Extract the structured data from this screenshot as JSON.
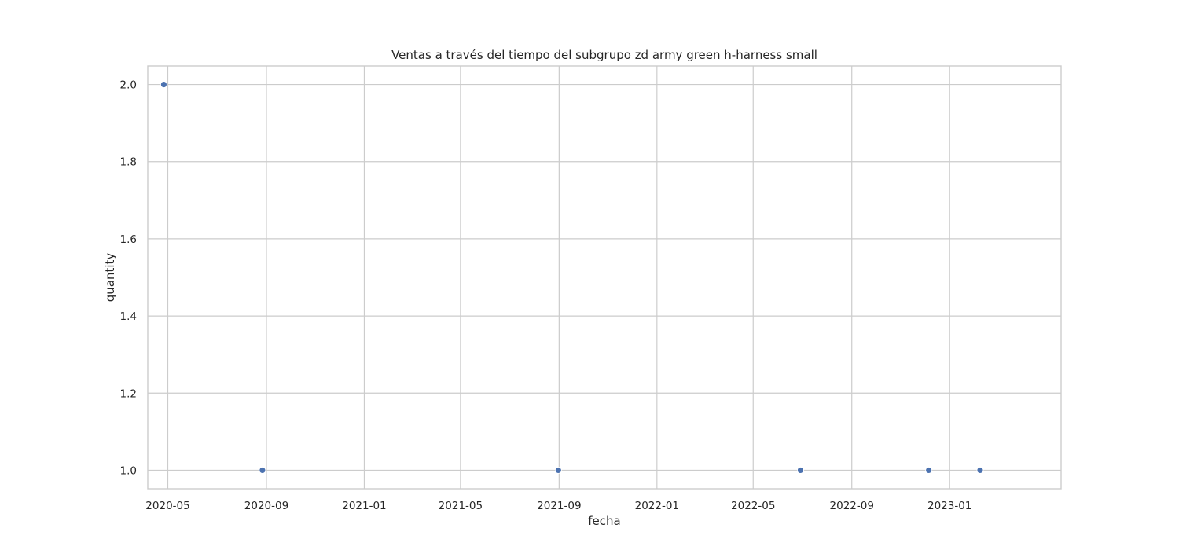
{
  "chart_data": {
    "type": "scatter",
    "title": "Ventas a través del tiempo del subgrupo zd army green h-harness small",
    "xlabel": "fecha",
    "ylabel": "quantity",
    "x_type": "date",
    "x": [
      "2020-04-26",
      "2020-08-27",
      "2021-08-31",
      "2022-06-29",
      "2022-12-06",
      "2023-02-08"
    ],
    "y": [
      2.0,
      1.0,
      1.0,
      1.0,
      1.0,
      1.0
    ],
    "xlim": [
      "2020-04-06",
      "2023-05-20"
    ],
    "ylim": [
      0.952,
      2.048
    ],
    "x_ticks": [
      "2020-05-01",
      "2020-09-01",
      "2021-01-01",
      "2021-05-01",
      "2021-09-01",
      "2022-01-01",
      "2022-05-01",
      "2022-09-01",
      "2023-01-01"
    ],
    "x_tick_labels": [
      "2020-05",
      "2020-09",
      "2021-01",
      "2021-05",
      "2021-09",
      "2022-01",
      "2022-05",
      "2022-09",
      "2023-01"
    ],
    "y_ticks": [
      1.0,
      1.2,
      1.4,
      1.6,
      1.8,
      2.0
    ],
    "y_tick_labels": [
      "1.0",
      "1.2",
      "1.4",
      "1.6",
      "1.8",
      "2.0"
    ],
    "grid": true,
    "marker_color": "#4c72b0"
  }
}
